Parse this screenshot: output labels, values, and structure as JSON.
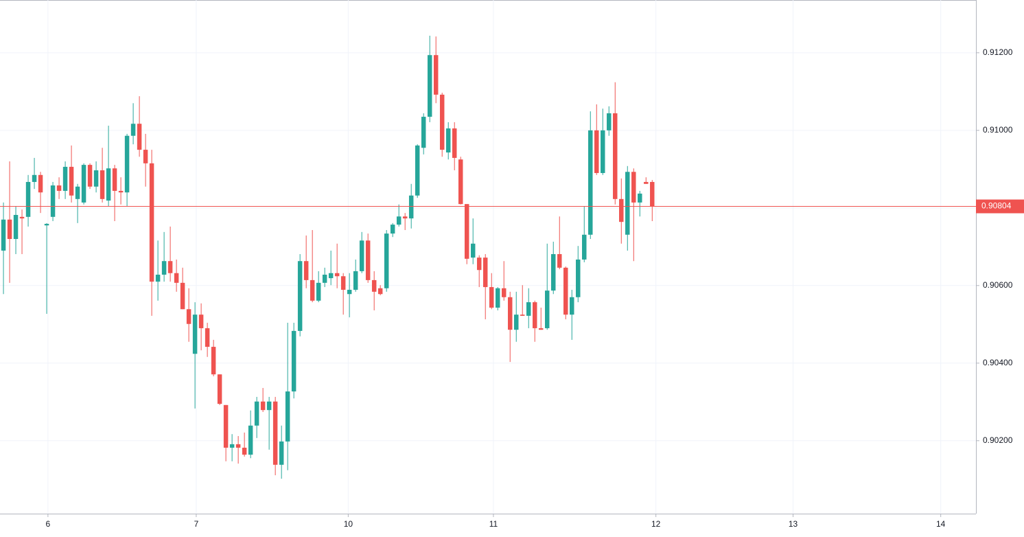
{
  "chart_data": {
    "type": "candlestick",
    "up_color": "#26a69a",
    "down_color": "#ef5350",
    "open": [
      0.9069,
      0.9077,
      0.9072,
      0.90777,
      0.90777,
      0.90867,
      0.90885,
      0.90755,
      0.90777,
      0.90858,
      0.90844,
      0.90906,
      0.90823,
      0.90814,
      0.90911,
      0.90855,
      0.90897,
      0.90819,
      0.90902,
      0.90844,
      0.9084,
      0.90986,
      0.91017,
      0.9095,
      0.90915,
      0.9061,
      0.90628,
      0.90663,
      0.90632,
      0.90607,
      0.90539,
      0.90424,
      0.90525,
      0.9049,
      0.90442,
      0.90371,
      0.90292,
      0.90182,
      0.90191,
      0.90182,
      0.90164,
      0.90239,
      0.90301,
      0.90279,
      0.90301,
      0.90138,
      0.90198,
      0.90327,
      0.90483,
      0.90663,
      0.90614,
      0.90561,
      0.90607,
      0.90619,
      0.90632,
      0.90624,
      0.90578,
      0.90589,
      0.90637,
      0.90716,
      0.90614,
      0.90593,
      0.90593,
      0.90734,
      0.90757,
      0.90778,
      0.90773,
      0.90832,
      0.90955,
      0.91035,
      0.91194,
      0.91092,
      0.90943,
      0.91005,
      0.90925,
      0.9081,
      0.90672,
      0.90672,
      0.90672,
      0.90596,
      0.90543,
      0.90593,
      0.9057,
      0.90486,
      0.90525,
      0.90522,
      0.90557,
      0.9049,
      0.9049,
      0.90587,
      0.90681,
      0.90646,
      0.90525,
      0.9057,
      0.90667,
      0.90731,
      0.91,
      0.9089,
      0.91,
      0.91044,
      0.90823,
      0.90731,
      0.90893,
      0.90814,
      0.90867,
      0.90867
    ],
    "high": [
      0.90814,
      0.9092,
      0.90805,
      0.90796,
      0.90885,
      0.90929,
      0.90893,
      0.90761,
      0.90867,
      0.90879,
      0.9092,
      0.90961,
      0.90862,
      0.90915,
      0.90915,
      0.9092,
      0.90955,
      0.91012,
      0.90911,
      0.90879,
      0.90991,
      0.9107,
      0.91088,
      0.90991,
      0.9095,
      0.90716,
      0.90738,
      0.90752,
      0.90667,
      0.90646,
      0.90593,
      0.90557,
      0.90554,
      0.90504,
      0.9046,
      0.90371,
      0.90292,
      0.90217,
      0.90212,
      0.90221,
      0.90278,
      0.90313,
      0.90336,
      0.90313,
      0.90313,
      0.90239,
      0.90504,
      0.90504,
      0.90681,
      0.90729,
      0.90743,
      0.90637,
      0.90646,
      0.9069,
      0.90708,
      0.90632,
      0.90632,
      0.90667,
      0.90738,
      0.90734,
      0.90637,
      0.90601,
      0.90743,
      0.90761,
      0.90809,
      0.90787,
      0.90862,
      0.90964,
      0.91044,
      0.91244,
      0.91242,
      0.91097,
      0.91021,
      0.91021,
      0.90932,
      0.9081,
      0.90773,
      0.90678,
      0.90681,
      0.90632,
      0.90596,
      0.90663,
      0.90584,
      0.90584,
      0.90601,
      0.90593,
      0.90561,
      0.90543,
      0.90708,
      0.90713,
      0.90778,
      0.90649,
      0.90589,
      0.90702,
      0.90805,
      0.91049,
      0.91067,
      0.91056,
      0.91062,
      0.91124,
      0.90876,
      0.90908,
      0.90902,
      0.90844,
      0.90879,
      0.90872
    ],
    "low": [
      0.90578,
      0.90607,
      0.90681,
      0.90681,
      0.90752,
      0.90849,
      0.90787,
      0.90527,
      0.90766,
      0.90823,
      0.90823,
      0.90814,
      0.90761,
      0.90809,
      0.90849,
      0.9084,
      0.90814,
      0.90805,
      0.90766,
      0.90809,
      0.90805,
      0.90964,
      0.90932,
      0.90855,
      0.90522,
      0.90561,
      0.9061,
      0.9061,
      0.90584,
      0.90539,
      0.90455,
      0.90283,
      0.90433,
      0.90416,
      0.90366,
      0.90292,
      0.90147,
      0.90147,
      0.90141,
      0.90159,
      0.90155,
      0.90207,
      0.90274,
      0.90177,
      0.90111,
      0.90102,
      0.90124,
      0.90309,
      0.90469,
      0.90593,
      0.90557,
      0.90557,
      0.90596,
      0.90601,
      0.90593,
      0.90525,
      0.90518,
      0.90584,
      0.90632,
      0.90607,
      0.90536,
      0.90575,
      0.90584,
      0.90725,
      0.90752,
      0.90743,
      0.90747,
      0.90826,
      0.90938,
      0.91021,
      0.9107,
      0.90932,
      0.90925,
      0.90897,
      0.90809,
      0.90655,
      0.90655,
      0.90596,
      0.90513,
      0.90539,
      0.90536,
      0.90561,
      0.90403,
      0.90455,
      0.90522,
      0.9049,
      0.90455,
      0.90486,
      0.90486,
      0.90578,
      0.90642,
      0.90513,
      0.9046,
      0.90557,
      0.9066,
      0.9072,
      0.90885,
      0.90885,
      0.90986,
      0.90809,
      0.90708,
      0.9069,
      0.90663,
      0.90778,
      0.90862,
      0.90766
    ],
    "close": [
      0.9077,
      0.9072,
      0.90782,
      0.90773,
      0.90867,
      0.90885,
      0.9084,
      0.90759,
      0.90858,
      0.90844,
      0.90906,
      0.90832,
      0.90855,
      0.90911,
      0.90855,
      0.90897,
      0.90823,
      0.90902,
      0.90844,
      0.9084,
      0.90986,
      0.91017,
      0.9095,
      0.90915,
      0.9061,
      0.90628,
      0.90663,
      0.90632,
      0.90607,
      0.90539,
      0.90501,
      0.90525,
      0.9049,
      0.90442,
      0.90371,
      0.90295,
      0.90182,
      0.90191,
      0.90182,
      0.90164,
      0.90239,
      0.90301,
      0.90279,
      0.90301,
      0.90138,
      0.90198,
      0.90327,
      0.90483,
      0.90663,
      0.90614,
      0.90561,
      0.90607,
      0.90628,
      0.90632,
      0.90624,
      0.90589,
      0.90589,
      0.90637,
      0.90716,
      0.90614,
      0.90584,
      0.90578,
      0.90734,
      0.90757,
      0.90778,
      0.90773,
      0.90832,
      0.90961,
      0.91035,
      0.91194,
      0.91092,
      0.9095,
      0.91005,
      0.90929,
      0.9081,
      0.90669,
      0.90708,
      0.9064,
      0.90596,
      0.90543,
      0.90593,
      0.9057,
      0.90486,
      0.90525,
      0.90522,
      0.90557,
      0.9049,
      0.90486,
      0.90587,
      0.90681,
      0.90646,
      0.90525,
      0.9057,
      0.90667,
      0.90731,
      0.91,
      0.9089,
      0.91,
      0.91044,
      0.90823,
      0.90764,
      0.90893,
      0.90814,
      0.90837,
      0.90862,
      0.90804
    ],
    "last_price": 0.90804,
    "last_price_color": "#ef5350",
    "ylim": [
      0.90012,
      0.91336
    ],
    "yticks": [
      {
        "value": 0.902,
        "label": "0.90200"
      },
      {
        "value": 0.904,
        "label": "0.90400"
      },
      {
        "value": 0.906,
        "label": "0.90600"
      },
      {
        "value": 0.908,
        "label": "0.90800"
      },
      {
        "value": 0.91,
        "label": "0.91000"
      },
      {
        "value": 0.912,
        "label": "0.91200"
      }
    ],
    "xlim": [
      -0.56,
      157.4
    ],
    "xticks": [
      {
        "value": 7.2,
        "label": "6"
      },
      {
        "value": 31.2,
        "label": "7"
      },
      {
        "value": 55.8,
        "label": "10"
      },
      {
        "value": 79.3,
        "label": "11"
      },
      {
        "value": 105.6,
        "label": "12"
      },
      {
        "value": 127.8,
        "label": "13"
      },
      {
        "value": 151.7,
        "label": "14"
      }
    ],
    "grid": true
  }
}
